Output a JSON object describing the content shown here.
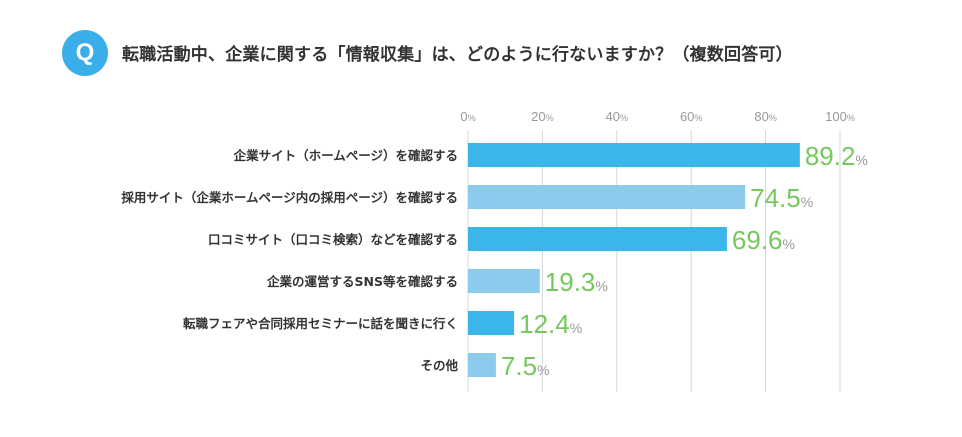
{
  "header": {
    "badge": "Q",
    "question": "転職活動中、企業に関する「情報収集」は、どのように行ないますか？（複数回答可）"
  },
  "colors": {
    "badge": "#3aaee8",
    "bar_dark": "#3cb6e8",
    "bar_light": "#8ccbec",
    "value_green": "#76c85e",
    "grid": "#cfd8de"
  },
  "chart_data": {
    "type": "bar",
    "orientation": "horizontal",
    "categories": [
      "企業サイト（ホームページ）を確認する",
      "採用サイト（企業ホームページ内の採用ページ）を確認する",
      "口コミサイト（口コミ検索）などを確認する",
      "企業の運営するSNS等を確認する",
      "転職フェアや合同採用セミナーに話を聞きに行く",
      "その他"
    ],
    "values": [
      89.2,
      74.5,
      69.6,
      19.3,
      12.4,
      7.5
    ],
    "value_labels": [
      "89.2",
      "74.5",
      "69.6",
      "19.3",
      "12.4",
      "7.5"
    ],
    "bar_shades": [
      "dark",
      "light",
      "dark",
      "light",
      "dark",
      "light"
    ],
    "xlim": [
      0,
      100
    ],
    "ticks": [
      "0",
      "20",
      "40",
      "60",
      "80",
      "100"
    ],
    "unit": "%",
    "grid": true
  }
}
